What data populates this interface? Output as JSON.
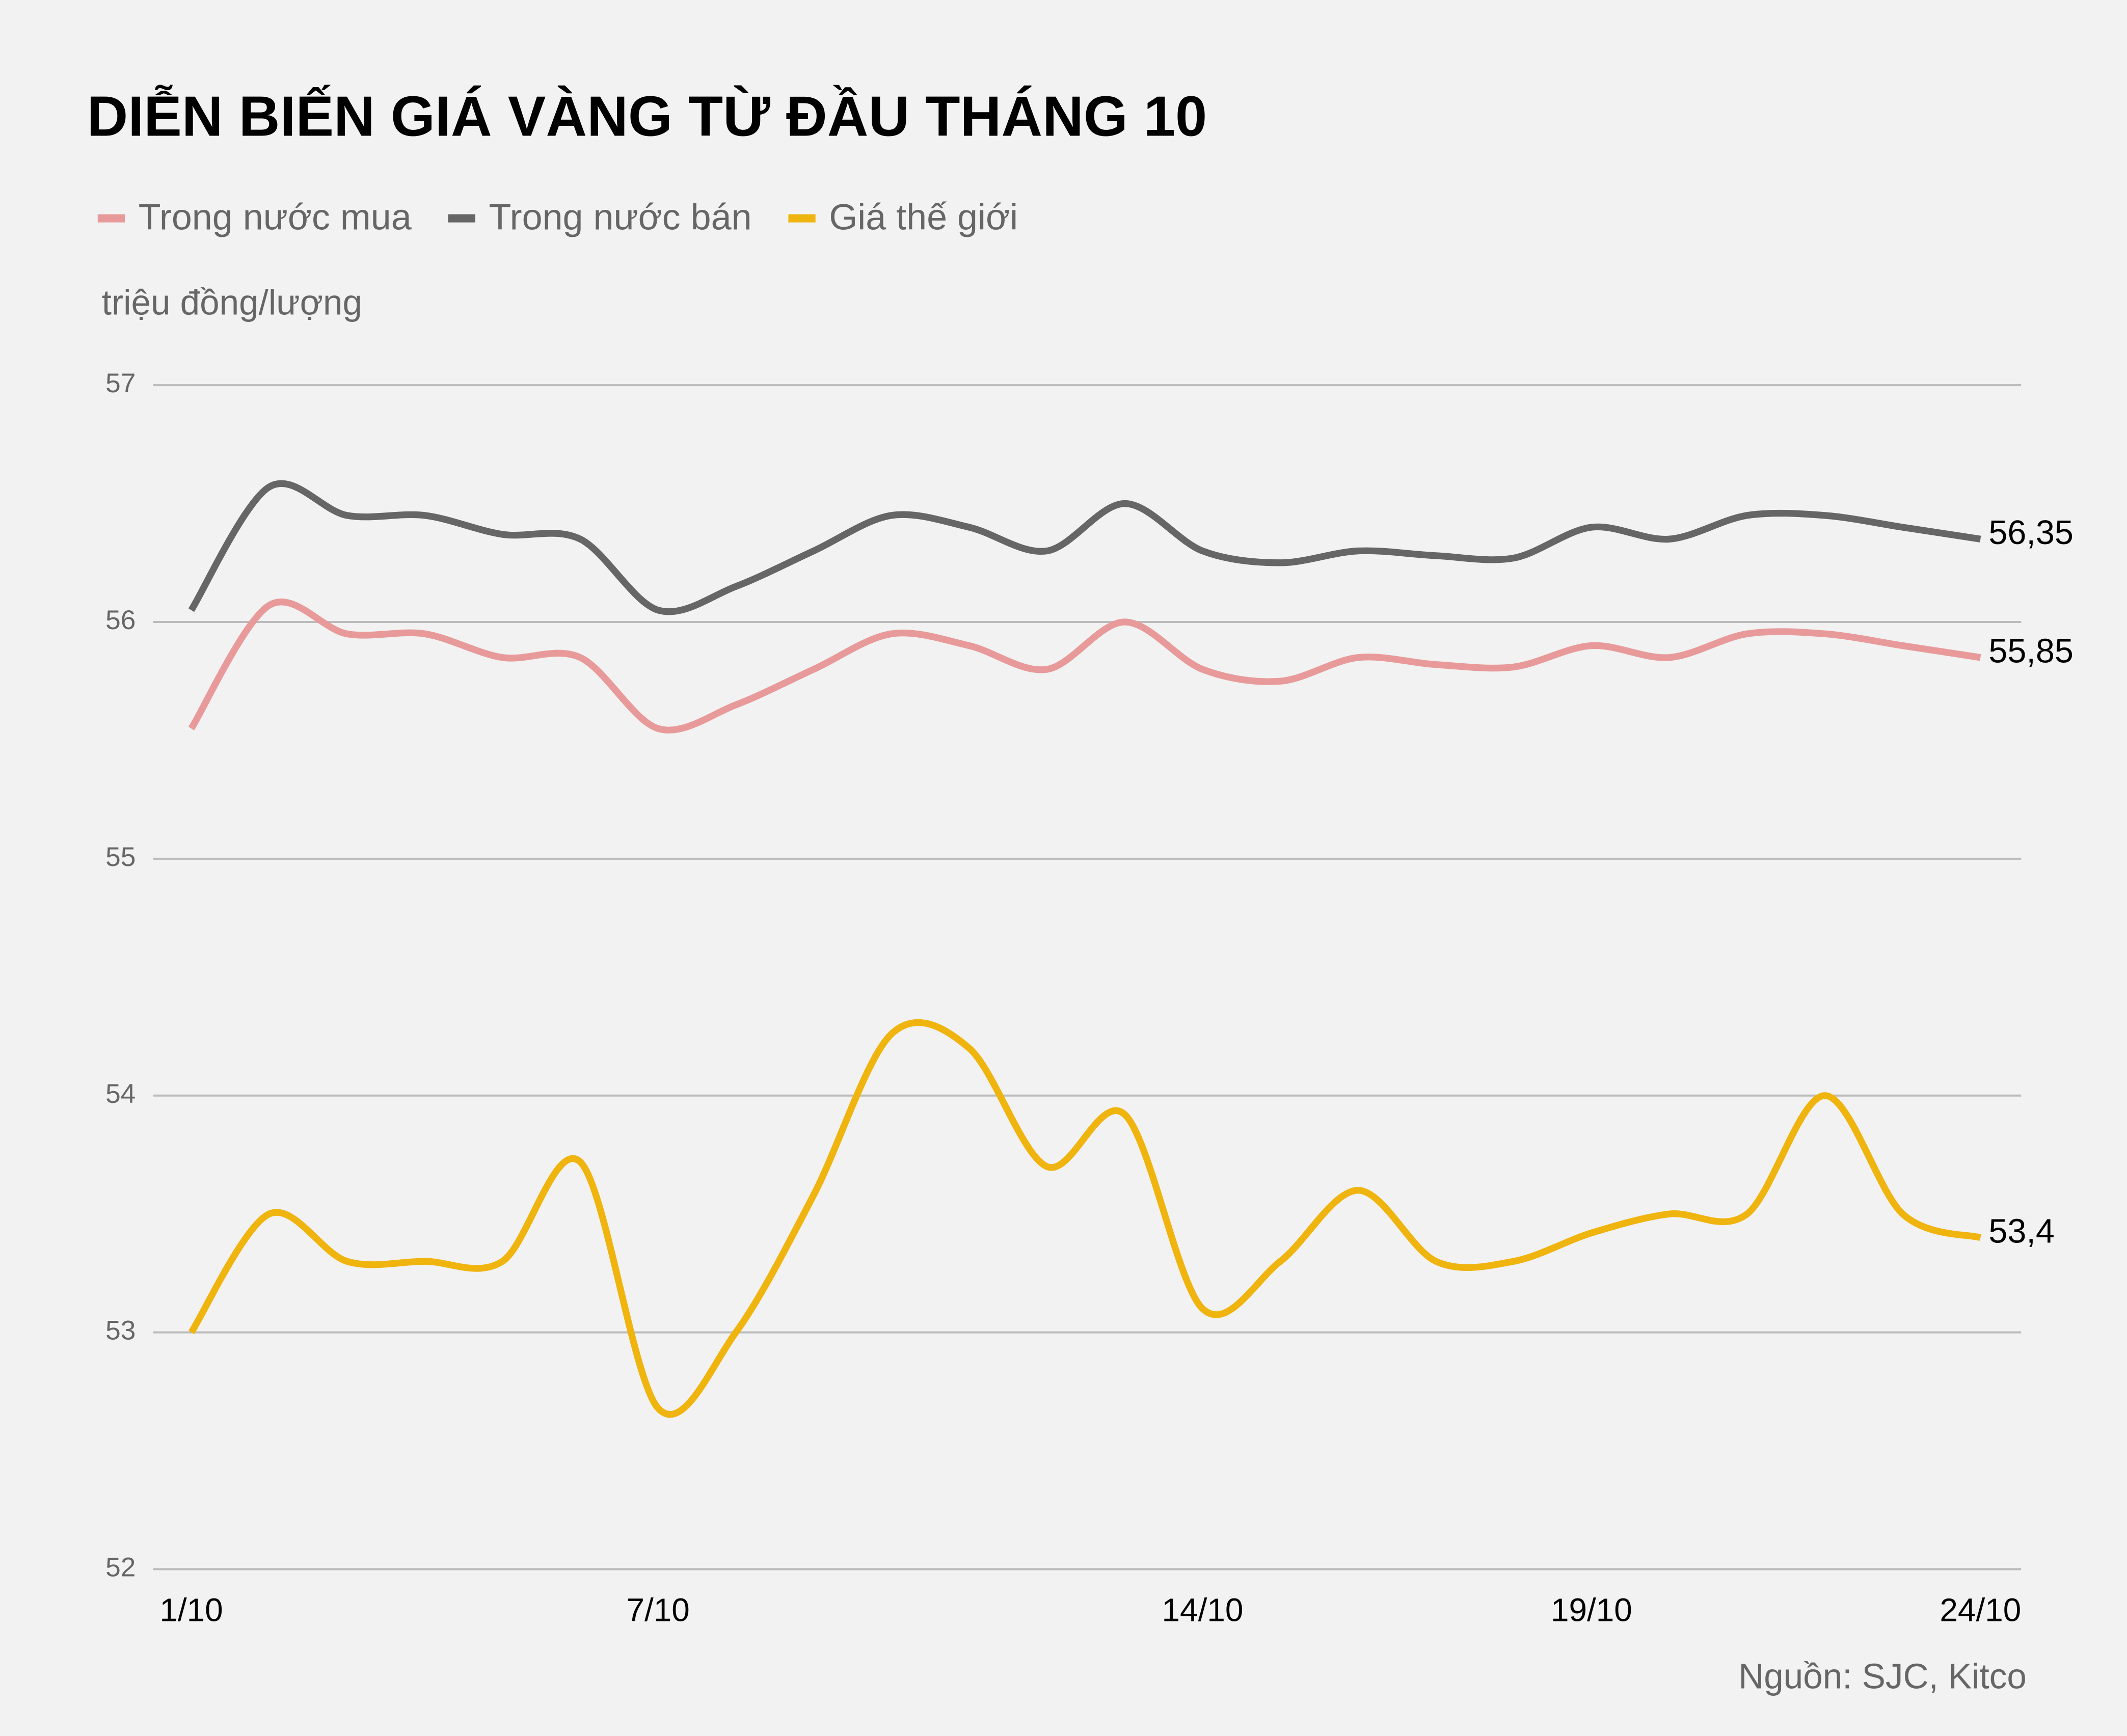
{
  "chart_data": {
    "type": "line",
    "title": "DIỄN BIẾN GIÁ VÀNG TỪ ĐẦU THÁNG 10",
    "y_label": "triệu đồng/lượng",
    "source": "Nguồn: SJC, Kitco",
    "categories": [
      "1/10",
      null,
      null,
      null,
      null,
      null,
      "7/10",
      null,
      null,
      null,
      null,
      null,
      null,
      "14/10",
      null,
      null,
      null,
      null,
      "19/10",
      null,
      null,
      null,
      null,
      "24/10"
    ],
    "series": [
      {
        "name": "Trong nước mua",
        "color": "#e89a9a",
        "values": [
          55.55,
          56.07,
          55.95,
          55.95,
          55.85,
          55.85,
          55.55,
          55.65,
          55.8,
          55.95,
          55.9,
          55.8,
          56.0,
          55.8,
          55.75,
          55.85,
          55.82,
          55.81,
          55.9,
          55.85,
          55.95,
          55.95,
          55.9,
          55.85
        ],
        "value_labels": [
          null,
          null,
          null,
          null,
          null,
          null,
          null,
          null,
          null,
          null,
          null,
          null,
          null,
          null,
          null,
          null,
          null,
          null,
          null,
          null,
          null,
          null,
          null,
          "55,85"
        ]
      },
      {
        "name": "Trong nước bán",
        "color": "#666666",
        "values": [
          56.05,
          56.57,
          56.45,
          56.45,
          56.37,
          56.35,
          56.05,
          56.15,
          56.3,
          56.45,
          56.4,
          56.3,
          56.5,
          56.3,
          56.25,
          56.3,
          56.28,
          56.27,
          56.4,
          56.35,
          56.45,
          56.45,
          56.4,
          56.35
        ],
        "value_labels": [
          null,
          null,
          null,
          null,
          null,
          null,
          null,
          null,
          null,
          null,
          null,
          null,
          null,
          null,
          null,
          null,
          null,
          null,
          null,
          null,
          null,
          null,
          null,
          "56,35"
        ]
      },
      {
        "name": "Giá thế giới",
        "color": "#f0b40f",
        "values": [
          53.0,
          53.5,
          53.3,
          53.3,
          53.3,
          53.72,
          52.68,
          53.0,
          53.58,
          54.26,
          54.2,
          53.7,
          53.92,
          53.1,
          53.3,
          53.6,
          53.3,
          53.3,
          53.42,
          53.5,
          53.5,
          54.0,
          53.5,
          53.4
        ],
        "value_labels": [
          null,
          null,
          null,
          null,
          null,
          null,
          null,
          null,
          null,
          null,
          null,
          null,
          null,
          null,
          null,
          null,
          null,
          null,
          null,
          null,
          null,
          null,
          null,
          "53,4"
        ]
      }
    ],
    "ylim": [
      52,
      57
    ],
    "yticks": [
      52,
      53,
      54,
      55,
      56,
      57
    ],
    "grid": true,
    "legend": "top-left"
  }
}
